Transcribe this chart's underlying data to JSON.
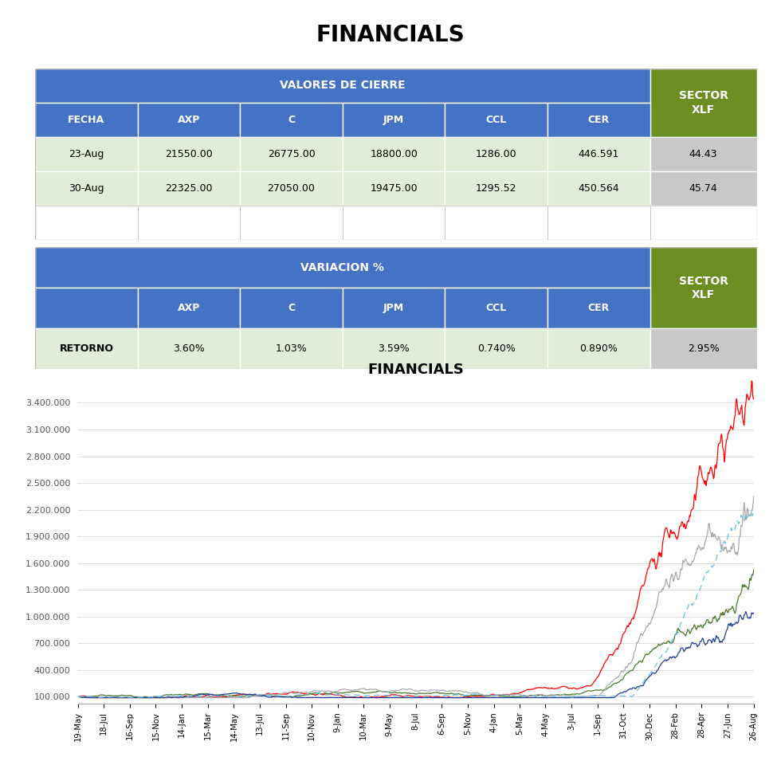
{
  "title": "FINANCIALS",
  "chart_title": "FINANCIALS",
  "table1_header1": "VALORES DE CIERRE",
  "table1_header2": "SECTOR\nXLF",
  "table2_header1": "VARIACION %",
  "table2_header2": "SECTOR\nXLF",
  "col_headers1": [
    "FECHA",
    "AXP",
    "C",
    "JPM",
    "CCL",
    "CER",
    "XLF"
  ],
  "row1": [
    "23-Aug",
    "21550.00",
    "26775.00",
    "18800.00",
    "1286.00",
    "446.591",
    "44.43"
  ],
  "row2": [
    "30-Aug",
    "22325.00",
    "27050.00",
    "19475.00",
    "1295.52",
    "450.564",
    "45.74"
  ],
  "col_headers2": [
    "",
    "AXP",
    "C",
    "JPM",
    "CCL",
    "CER",
    "XLF"
  ],
  "retorno_row": [
    "RETORNO",
    "3.60%",
    "1.03%",
    "3.59%",
    "0.740%",
    "0.890%",
    "2.95%"
  ],
  "x_labels": [
    "19-May",
    "18-Jul",
    "16-Sep",
    "15-Nov",
    "14-Jan",
    "15-Mar",
    "14-May",
    "13-Jul",
    "11-Sep",
    "10-Nov",
    "9-Jan",
    "10-Mar",
    "9-May",
    "8-Jul",
    "6-Sep",
    "5-Nov",
    "4-Jan",
    "5-Mar",
    "4-May",
    "3-Jul",
    "1-Sep",
    "31-Oct",
    "30-Dec",
    "28-Feb",
    "28-Apr",
    "27-Jun",
    "26-Aug"
  ],
  "blue_header": "#4472C4",
  "green_header": "#6B8E23",
  "light_green_row": "#E2EDD9",
  "light_gray_sector": "#C8C8C8",
  "white_row": "#FFFFFF",
  "border_color": "#BBBBBB",
  "yticks": [
    100000,
    400000,
    700000,
    1000000,
    1300000,
    1600000,
    1900000,
    2200000,
    2500000,
    2800000,
    3100000,
    3400000
  ],
  "line_colors": {
    "AXP": "#FF0000",
    "C": "#4B7A2B",
    "JPM": "#A9A9A9",
    "CCL": "#1F3F99",
    "CER": "#6BBDE8"
  }
}
